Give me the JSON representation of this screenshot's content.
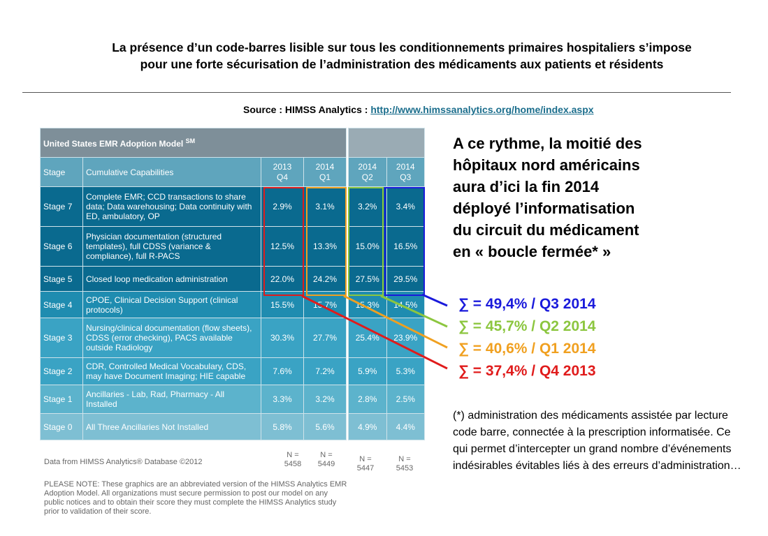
{
  "title_line1": "La présence d’un code-barres lisible sur tous les conditionnements primaires hospitaliers s’impose",
  "title_line2": "pour une forte sécurisation de l’administration des médicaments aux patients et résidents",
  "source_label": "Source : HIMSS Analytics : ",
  "source_link": "http://www.himssanalytics.org/home/index.aspx",
  "table": {
    "title": "United States EMR Adoption Model",
    "title_sup": "SM",
    "col_stage": "Stage",
    "col_cap": "Cumulative Capabilities",
    "quarters": [
      {
        "year": "2013",
        "q": "Q4"
      },
      {
        "year": "2014",
        "q": "Q1"
      },
      {
        "year": "2014",
        "q": "Q2"
      },
      {
        "year": "2014",
        "q": "Q3"
      }
    ],
    "rows": [
      {
        "stage": "Stage 7",
        "cap": "Complete EMR; CCD transactions to share data; Data warehousing; Data continuity with ED, ambulatory, OP",
        "v": [
          "2.9%",
          "3.1%",
          "3.2%",
          "3.4%"
        ]
      },
      {
        "stage": "Stage 6",
        "cap": "Physician documentation (structured templates), full CDSS (variance & compliance), full R-PACS",
        "v": [
          "12.5%",
          "13.3%",
          "15.0%",
          "16.5%"
        ]
      },
      {
        "stage": "Stage 5",
        "cap": "Closed loop medication administration",
        "v": [
          "22.0%",
          "24.2%",
          "27.5%",
          "29.5%"
        ]
      },
      {
        "stage": "Stage 4",
        "cap": "CPOE, Clinical Decision Support (clinical protocols)",
        "v": [
          "15.5%",
          "15.7%",
          "15.3%",
          "14.5%"
        ]
      },
      {
        "stage": "Stage 3",
        "cap": "Nursing/clinical documentation (flow sheets), CDSS (error checking), PACS available outside Radiology",
        "v": [
          "30.3%",
          "27.7%",
          "25.4%",
          "23.9%"
        ]
      },
      {
        "stage": "Stage 2",
        "cap": "CDR, Controlled Medical Vocabulary, CDS, may have Document Imaging; HIE capable",
        "v": [
          "7.6%",
          "7.2%",
          "5.9%",
          "5.3%"
        ]
      },
      {
        "stage": "Stage 1",
        "cap": "Ancillaries - Lab, Rad, Pharmacy - All Installed",
        "v": [
          "3.3%",
          "3.2%",
          "2.8%",
          "2.5%"
        ]
      },
      {
        "stage": "Stage 0",
        "cap": "All Three Ancillaries Not Installed",
        "v": [
          "5.8%",
          "5.6%",
          "4.9%",
          "4.4%"
        ]
      }
    ],
    "data_from": "Data from HIMSS Analytics® Database ©2012",
    "n_label": "N =",
    "n_values": [
      "5458",
      "5449",
      "5447",
      "5453"
    ],
    "note": "PLEASE NOTE: These graphics are an abbreviated version of the HIMSS Analytics EMR Adoption Model. All organizations must secure permission to post our model on any public notices and to obtain their score they must complete the HIMSS Analytics study prior to validation of their score."
  },
  "headline": [
    "A ce rythme, la moitié des",
    "hôpitaux nord américains",
    "aura d’ici la fin 2014",
    "déployé l’informatisation",
    "du circuit du médicament",
    "en « boucle fermée* »"
  ],
  "sums": [
    {
      "text": "∑ = 49,4% / Q3 2014",
      "color": "#1a1adb"
    },
    {
      "text": "∑ = 45,7% / Q2 2014",
      "color": "#8cc63f"
    },
    {
      "text": "∑ = 40,6% / Q1 2014",
      "color": "#f0a020"
    },
    {
      "text": "∑ = 37,4% / Q4 2013",
      "color": "#e01b1b"
    }
  ],
  "footnote": "(*) administration des médicaments assistée par lecture code barre, connectée à la prescription informatisée. Ce qui permet d’intercepter un grand nombre d’événements indésirables évitables liés à des erreurs d’administration…"
}
